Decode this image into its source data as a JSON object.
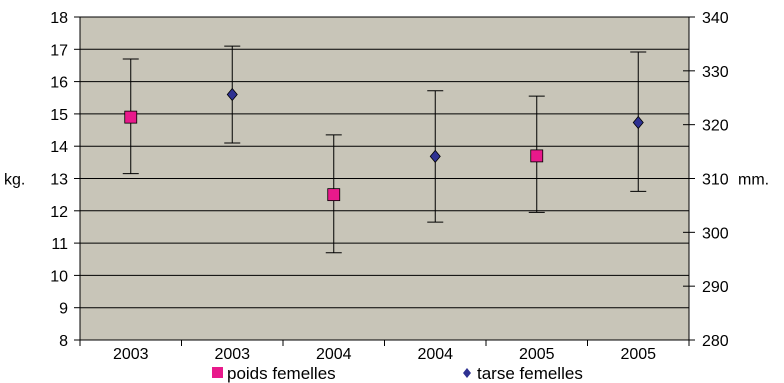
{
  "colors": {
    "plot_background": "#c8c5b8",
    "poids": "#e8198b",
    "tarse": "#2e3192",
    "axis": "#000000"
  },
  "chart_data": {
    "type": "scatter",
    "categories": [
      "2003",
      "2003",
      "2004",
      "2004",
      "2005",
      "2005"
    ],
    "left_axis": {
      "label": "kg.",
      "min": 8,
      "max": 18,
      "step": 1,
      "ticks": [
        "8",
        "9",
        "10",
        "11",
        "12",
        "13",
        "14",
        "15",
        "16",
        "17",
        "18"
      ]
    },
    "right_axis": {
      "label": "mm.",
      "min": 280,
      "max": 340,
      "step": 10,
      "ticks": [
        "280",
        "290",
        "300",
        "310",
        "320",
        "330",
        "340"
      ]
    },
    "series": [
      {
        "name": "poids femelles",
        "marker": "square",
        "axis": "left",
        "points": [
          {
            "category_index": 0,
            "value": 14.9,
            "low": 13.15,
            "high": 16.7
          },
          {
            "category_index": 2,
            "value": 12.5,
            "low": 10.7,
            "high": 14.35
          },
          {
            "category_index": 4,
            "value": 13.7,
            "low": 11.95,
            "high": 15.55
          }
        ]
      },
      {
        "name": "tarse femelles",
        "marker": "diamond",
        "axis": "right",
        "points": [
          {
            "category_index": 1,
            "value": 325.6,
            "low": 316.6,
            "high": 334.6
          },
          {
            "category_index": 3,
            "value": 314.1,
            "low": 301.9,
            "high": 326.3
          },
          {
            "category_index": 5,
            "value": 320.4,
            "low": 307.6,
            "high": 333.5
          }
        ]
      }
    ],
    "grid": true,
    "legend_position": "bottom"
  }
}
